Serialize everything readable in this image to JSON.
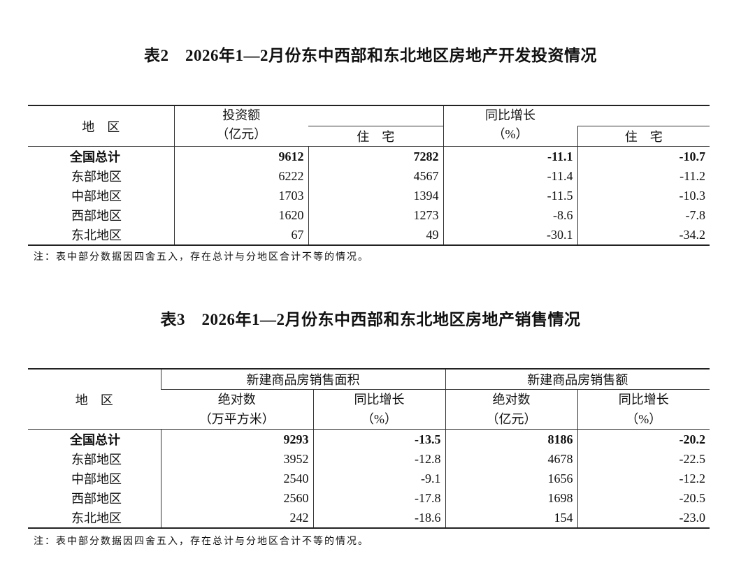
{
  "table2": {
    "title": "表2　2026年1—2月份东中西部和东北地区房地产开发投资情况",
    "headers": {
      "region": "地　区",
      "investment": "投资额",
      "investment_unit": "（亿元）",
      "residential": "住　宅",
      "growth": "同比增长",
      "growth_unit": "（%）",
      "growth_residential": "住　宅"
    },
    "rows": [
      [
        "全国总计",
        "9612",
        "7282",
        "-11.1",
        "-10.7"
      ],
      [
        "东部地区",
        "6222",
        "4567",
        "-11.4",
        "-11.2"
      ],
      [
        "中部地区",
        "1703",
        "1394",
        "-11.5",
        "-10.3"
      ],
      [
        "西部地区",
        "1620",
        "1273",
        "-8.6",
        "-7.8"
      ],
      [
        "东北地区",
        "67",
        "49",
        "-30.1",
        "-34.2"
      ]
    ],
    "note": "注：表中部分数据因四舍五入，存在总计与分地区合计不等的情况。"
  },
  "table3": {
    "title": "表3　2026年1—2月份东中西部和东北地区房地产销售情况",
    "headers": {
      "region": "地　区",
      "area": "新建商品房销售面积",
      "sales": "新建商品房销售额",
      "area_abs": "绝对数",
      "area_unit": "（万平方米）",
      "area_growth": "同比增长",
      "area_growth_unit": "（%）",
      "sales_abs": "绝对数",
      "sales_unit": "（亿元）",
      "sales_growth": "同比增长",
      "sales_growth_unit": "（%）"
    },
    "rows": [
      [
        "全国总计",
        "9293",
        "-13.5",
        "8186",
        "-20.2"
      ],
      [
        "东部地区",
        "3952",
        "-12.8",
        "4678",
        "-22.5"
      ],
      [
        "中部地区",
        "2540",
        "-9.1",
        "1656",
        "-12.2"
      ],
      [
        "西部地区",
        "2560",
        "-17.8",
        "1698",
        "-20.5"
      ],
      [
        "东北地区",
        "242",
        "-18.6",
        "154",
        "-23.0"
      ]
    ],
    "note": "注：表中部分数据因四舍五入，存在总计与分地区合计不等的情况。"
  }
}
